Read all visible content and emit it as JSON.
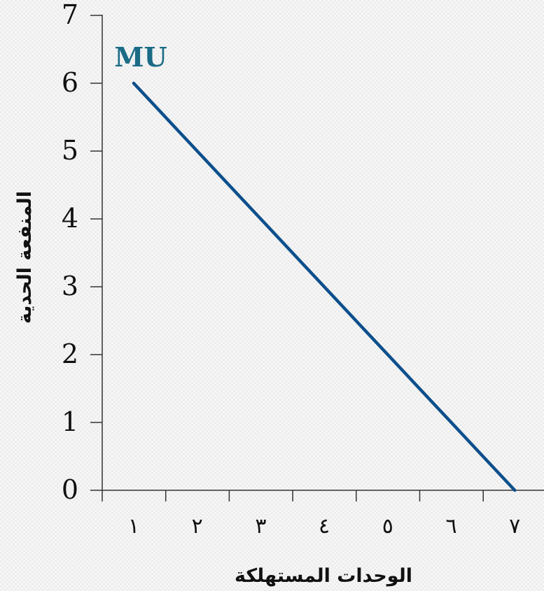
{
  "chart_data": {
    "type": "line",
    "title": "",
    "xlabel": "الوحدات المستهلكة",
    "ylabel": "المنفعة الحدية",
    "x_categories": [
      "١",
      "٢",
      "٣",
      "٤",
      "٥",
      "٦",
      "٧"
    ],
    "y_ticks": [
      "0",
      "1",
      "2",
      "3",
      "4",
      "5",
      "6",
      "7"
    ],
    "ylim": [
      0,
      7
    ],
    "grid": false,
    "series": [
      {
        "name": "MU",
        "color": "#0d4f8c",
        "label_color": "#1b6b86",
        "points": [
          [
            1,
            6
          ],
          [
            7,
            0
          ]
        ]
      }
    ]
  }
}
